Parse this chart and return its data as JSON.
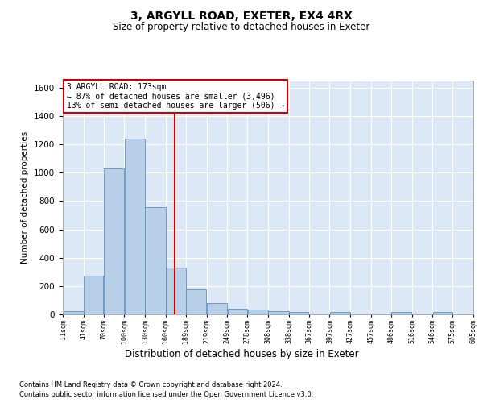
{
  "title1": "3, ARGYLL ROAD, EXETER, EX4 4RX",
  "title2": "Size of property relative to detached houses in Exeter",
  "xlabel": "Distribution of detached houses by size in Exeter",
  "ylabel": "Number of detached properties",
  "footnote1": "Contains HM Land Registry data © Crown copyright and database right 2024.",
  "footnote2": "Contains public sector information licensed under the Open Government Licence v3.0.",
  "property_label": "3 ARGYLL ROAD: 173sqm",
  "annotation_line1": "← 87% of detached houses are smaller (3,496)",
  "annotation_line2": "13% of semi-detached houses are larger (506) →",
  "bin_labels": [
    "11sqm",
    "41sqm",
    "70sqm",
    "100sqm",
    "130sqm",
    "160sqm",
    "189sqm",
    "219sqm",
    "249sqm",
    "278sqm",
    "308sqm",
    "338sqm",
    "367sqm",
    "397sqm",
    "427sqm",
    "457sqm",
    "486sqm",
    "516sqm",
    "546sqm",
    "575sqm",
    "605sqm"
  ],
  "bin_edges": [
    11,
    41,
    70,
    100,
    130,
    160,
    189,
    219,
    249,
    278,
    308,
    338,
    367,
    397,
    427,
    457,
    486,
    516,
    546,
    575,
    605
  ],
  "bar_heights": [
    20,
    275,
    1030,
    1240,
    755,
    330,
    175,
    80,
    42,
    35,
    20,
    15,
    0,
    15,
    0,
    0,
    15,
    0,
    15,
    0,
    0
  ],
  "bar_color": "#b8cfe8",
  "bar_edge_color": "#6090c0",
  "vline_x": 173,
  "vline_color": "#cc0000",
  "ylim": [
    0,
    1650
  ],
  "yticks": [
    0,
    200,
    400,
    600,
    800,
    1000,
    1200,
    1400,
    1600
  ],
  "annotation_box_color": "#cc0000",
  "bg_color": "#dce8f5",
  "grid_color": "#ffffff"
}
